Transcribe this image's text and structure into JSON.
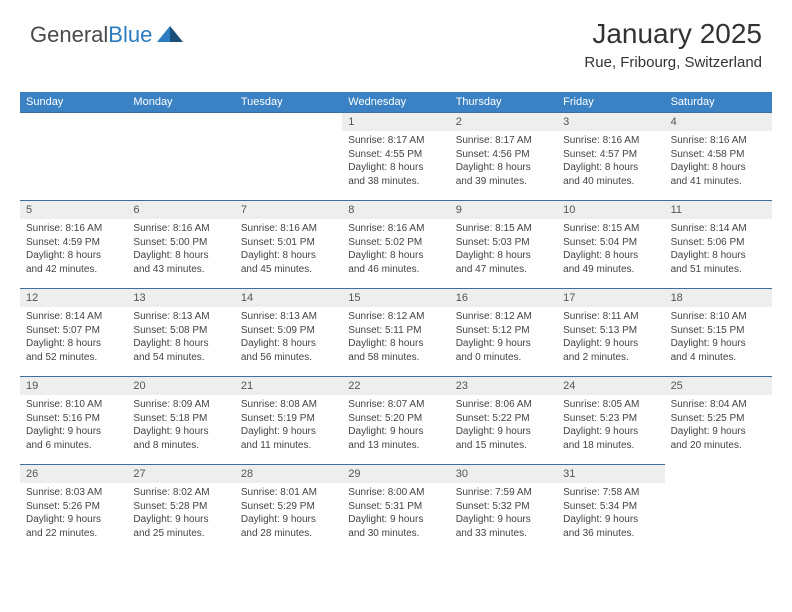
{
  "logo": {
    "text1": "General",
    "text2": "Blue"
  },
  "header": {
    "month": "January 2025",
    "location": "Rue, Fribourg, Switzerland"
  },
  "colors": {
    "header_bg": "#3b82c4",
    "header_text": "#ffffff",
    "daynum_bg": "#eeeeee",
    "border": "#3b6fa0",
    "logo_gray": "#4a4a4a",
    "logo_blue": "#2b7bbf"
  },
  "weekdays": [
    "Sunday",
    "Monday",
    "Tuesday",
    "Wednesday",
    "Thursday",
    "Friday",
    "Saturday"
  ],
  "blanks_before": 3,
  "days": [
    {
      "n": 1,
      "sunrise": "8:17 AM",
      "sunset": "4:55 PM",
      "dl_h": 8,
      "dl_m": 38
    },
    {
      "n": 2,
      "sunrise": "8:17 AM",
      "sunset": "4:56 PM",
      "dl_h": 8,
      "dl_m": 39
    },
    {
      "n": 3,
      "sunrise": "8:16 AM",
      "sunset": "4:57 PM",
      "dl_h": 8,
      "dl_m": 40
    },
    {
      "n": 4,
      "sunrise": "8:16 AM",
      "sunset": "4:58 PM",
      "dl_h": 8,
      "dl_m": 41
    },
    {
      "n": 5,
      "sunrise": "8:16 AM",
      "sunset": "4:59 PM",
      "dl_h": 8,
      "dl_m": 42
    },
    {
      "n": 6,
      "sunrise": "8:16 AM",
      "sunset": "5:00 PM",
      "dl_h": 8,
      "dl_m": 43
    },
    {
      "n": 7,
      "sunrise": "8:16 AM",
      "sunset": "5:01 PM",
      "dl_h": 8,
      "dl_m": 45
    },
    {
      "n": 8,
      "sunrise": "8:16 AM",
      "sunset": "5:02 PM",
      "dl_h": 8,
      "dl_m": 46
    },
    {
      "n": 9,
      "sunrise": "8:15 AM",
      "sunset": "5:03 PM",
      "dl_h": 8,
      "dl_m": 47
    },
    {
      "n": 10,
      "sunrise": "8:15 AM",
      "sunset": "5:04 PM",
      "dl_h": 8,
      "dl_m": 49
    },
    {
      "n": 11,
      "sunrise": "8:14 AM",
      "sunset": "5:06 PM",
      "dl_h": 8,
      "dl_m": 51
    },
    {
      "n": 12,
      "sunrise": "8:14 AM",
      "sunset": "5:07 PM",
      "dl_h": 8,
      "dl_m": 52
    },
    {
      "n": 13,
      "sunrise": "8:13 AM",
      "sunset": "5:08 PM",
      "dl_h": 8,
      "dl_m": 54
    },
    {
      "n": 14,
      "sunrise": "8:13 AM",
      "sunset": "5:09 PM",
      "dl_h": 8,
      "dl_m": 56
    },
    {
      "n": 15,
      "sunrise": "8:12 AM",
      "sunset": "5:11 PM",
      "dl_h": 8,
      "dl_m": 58
    },
    {
      "n": 16,
      "sunrise": "8:12 AM",
      "sunset": "5:12 PM",
      "dl_h": 9,
      "dl_m": 0
    },
    {
      "n": 17,
      "sunrise": "8:11 AM",
      "sunset": "5:13 PM",
      "dl_h": 9,
      "dl_m": 2
    },
    {
      "n": 18,
      "sunrise": "8:10 AM",
      "sunset": "5:15 PM",
      "dl_h": 9,
      "dl_m": 4
    },
    {
      "n": 19,
      "sunrise": "8:10 AM",
      "sunset": "5:16 PM",
      "dl_h": 9,
      "dl_m": 6
    },
    {
      "n": 20,
      "sunrise": "8:09 AM",
      "sunset": "5:18 PM",
      "dl_h": 9,
      "dl_m": 8
    },
    {
      "n": 21,
      "sunrise": "8:08 AM",
      "sunset": "5:19 PM",
      "dl_h": 9,
      "dl_m": 11
    },
    {
      "n": 22,
      "sunrise": "8:07 AM",
      "sunset": "5:20 PM",
      "dl_h": 9,
      "dl_m": 13
    },
    {
      "n": 23,
      "sunrise": "8:06 AM",
      "sunset": "5:22 PM",
      "dl_h": 9,
      "dl_m": 15
    },
    {
      "n": 24,
      "sunrise": "8:05 AM",
      "sunset": "5:23 PM",
      "dl_h": 9,
      "dl_m": 18
    },
    {
      "n": 25,
      "sunrise": "8:04 AM",
      "sunset": "5:25 PM",
      "dl_h": 9,
      "dl_m": 20
    },
    {
      "n": 26,
      "sunrise": "8:03 AM",
      "sunset": "5:26 PM",
      "dl_h": 9,
      "dl_m": 22
    },
    {
      "n": 27,
      "sunrise": "8:02 AM",
      "sunset": "5:28 PM",
      "dl_h": 9,
      "dl_m": 25
    },
    {
      "n": 28,
      "sunrise": "8:01 AM",
      "sunset": "5:29 PM",
      "dl_h": 9,
      "dl_m": 28
    },
    {
      "n": 29,
      "sunrise": "8:00 AM",
      "sunset": "5:31 PM",
      "dl_h": 9,
      "dl_m": 30
    },
    {
      "n": 30,
      "sunrise": "7:59 AM",
      "sunset": "5:32 PM",
      "dl_h": 9,
      "dl_m": 33
    },
    {
      "n": 31,
      "sunrise": "7:58 AM",
      "sunset": "5:34 PM",
      "dl_h": 9,
      "dl_m": 36
    }
  ]
}
